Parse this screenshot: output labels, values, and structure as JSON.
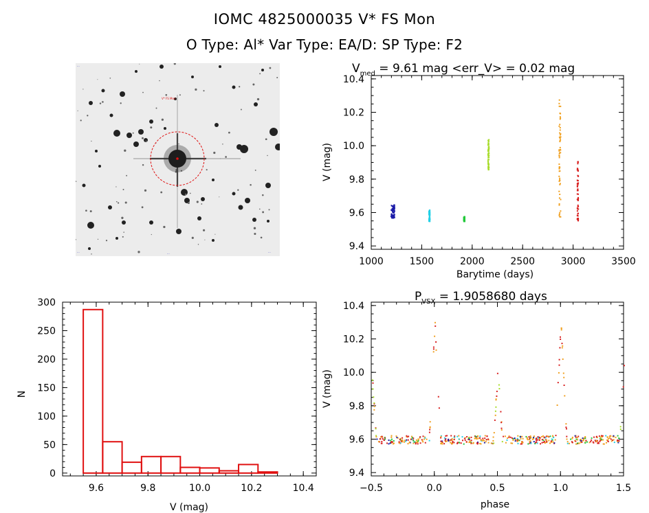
{
  "header": {
    "title": "IOMC 4825000035   V* FS Mon",
    "subtitle": "O Type: Al*  Var Type: EA/D:  SP Type: F2"
  },
  "finder": {
    "label_top_left": "...",
    "label_target": "V* FS Mon",
    "label_bottom_left": "...",
    "label_bottom_center": "...",
    "label_bottom_right": "..."
  },
  "chart_data": [
    {
      "id": "lightcurve",
      "type": "scatter",
      "title_main": "V",
      "title_sub": "med",
      "title_rest": " = 9.61 mag <err_V> = 0.02 mag",
      "xlabel": "Barytime (days)",
      "ylabel": "V (mag)",
      "xlim": [
        1000,
        3500
      ],
      "ylim": [
        10.42,
        9.38
      ],
      "xticks": [
        1000,
        1500,
        2000,
        2500,
        3000,
        3500
      ],
      "yticks": [
        "9.4",
        "9.6",
        "9.8",
        "10.0",
        "10.2",
        "10.4"
      ],
      "series": [
        {
          "color": "#1c1ca8",
          "x_range": [
            1190,
            1225
          ],
          "y_range": [
            9.57,
            9.65
          ]
        },
        {
          "color": "#22d0e6",
          "x_range": [
            1565,
            1575
          ],
          "y_range": [
            9.55,
            9.62
          ]
        },
        {
          "color": "#22c83a",
          "x_range": [
            1910,
            1920
          ],
          "y_range": [
            9.55,
            9.58
          ]
        },
        {
          "color": "#a8dc2c",
          "x_range": [
            2150,
            2160
          ],
          "y_range": [
            9.86,
            10.04
          ]
        },
        {
          "color": "#f0a020",
          "x_range": [
            2855,
            2870
          ],
          "y_range": [
            9.57,
            10.3
          ]
        },
        {
          "color": "#d82020",
          "x_range": [
            3035,
            3045
          ],
          "y_range": [
            9.55,
            9.92
          ]
        }
      ]
    },
    {
      "id": "histogram",
      "type": "bar",
      "xlabel": "V (mag)",
      "ylabel": "N",
      "xlim": [
        9.47,
        10.45
      ],
      "ylim": [
        -5,
        300
      ],
      "xticks": [
        "9.6",
        "9.8",
        "10.0",
        "10.2",
        "10.4"
      ],
      "yticks": [
        "0",
        "50",
        "100",
        "150",
        "200",
        "250",
        "300"
      ],
      "bin_edges": [
        9.55,
        9.625,
        9.7,
        9.775,
        9.85,
        9.925,
        10.0,
        10.075,
        10.15,
        10.225,
        10.3
      ],
      "values": [
        287,
        55,
        19,
        29,
        29,
        10,
        9,
        4,
        15,
        2
      ]
    },
    {
      "id": "phased",
      "type": "scatter",
      "title_main": "P",
      "title_sub": "VSX",
      "title_rest": " = 1.9058680 days",
      "xlabel": "phase",
      "ylabel": "V (mag)",
      "xlim": [
        -0.5,
        1.5
      ],
      "ylim": [
        10.42,
        9.38
      ],
      "xticks": [
        "−0.5",
        "0.0",
        "0.5",
        "1.0",
        "1.5"
      ],
      "yticks": [
        "9.4",
        "9.6",
        "9.8",
        "10.0",
        "10.2",
        "10.4"
      ],
      "period_days": 1.905868,
      "primary_min_depth_mag": 10.3,
      "secondary_min_depth_mag": 10.02,
      "max_mag": 9.6
    }
  ]
}
